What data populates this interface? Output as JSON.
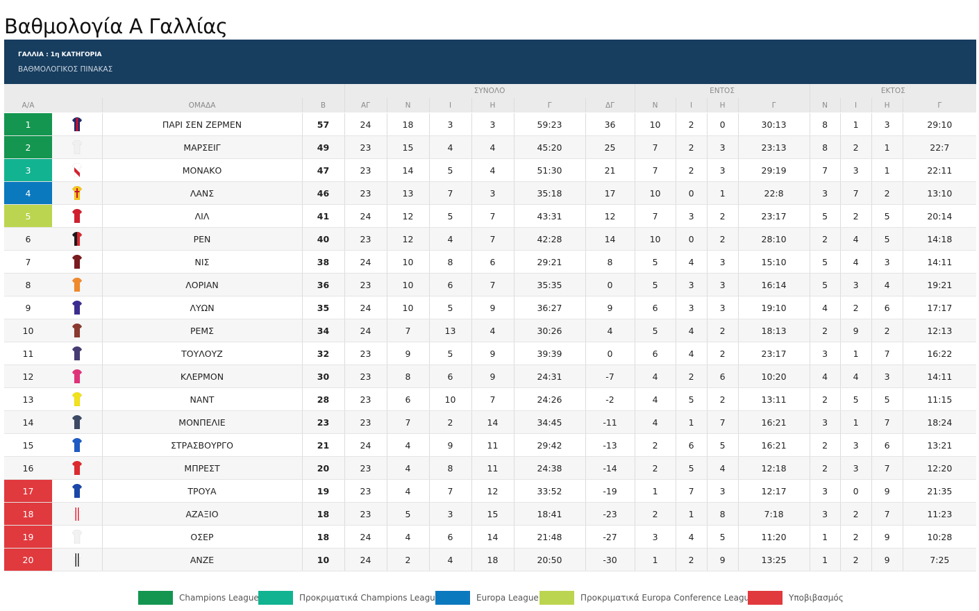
{
  "page_title": "Βαθμολογία Α Γαλλίας",
  "banner": {
    "country": "ΓΑΛΛΙΑ : 1η ΚΑΤΗΓΟΡΙΑ",
    "subtitle": "ΒΑΘΜΟΛΟΓΙΚΟΣ ΠΙΝΑΚΑΣ"
  },
  "header": {
    "groups": {
      "total": "ΣΥΝΟΛΟ",
      "home": "ΕΝΤΟΣ",
      "away": "ΕΚΤΟΣ"
    },
    "columns": {
      "pos": "Α/Α",
      "team": "ΟΜΑΔΑ",
      "pts": "Β",
      "gp": "ΑΓ",
      "w": "Ν",
      "d": "Ι",
      "l": "Η",
      "goals": "Γ",
      "gd": "ΔΓ"
    }
  },
  "zone_colors": {
    "cl": "#149650",
    "clq": "#12b391",
    "el": "#0b79be",
    "ecq": "#bcd550",
    "rel": "#e03a3e"
  },
  "rows": [
    {
      "pos": "1",
      "team": "ΠΑΡΙ ΣΕΝ ΖΕΡΜΕΝ",
      "pts": "57",
      "gp": "24",
      "w": "18",
      "d": "3",
      "l": "3",
      "goals": "59:23",
      "gd": "36",
      "hw": "10",
      "hd": "2",
      "hl": "0",
      "hg": "30:13",
      "aw": "8",
      "ad": "1",
      "al": "3",
      "ag": "29:10",
      "zone": "cl",
      "kit": {
        "icon": "psg-kit-icon",
        "primary": "#1d2a6b",
        "secondary": "#d4122b",
        "stripe": "center"
      }
    },
    {
      "pos": "2",
      "team": "ΜΑΡΣΕΙΓ",
      "pts": "49",
      "gp": "23",
      "w": "15",
      "d": "4",
      "l": "4",
      "goals": "45:20",
      "gd": "25",
      "hw": "7",
      "hd": "2",
      "hl": "3",
      "hg": "23:13",
      "aw": "8",
      "ad": "2",
      "al": "1",
      "ag": "22:7",
      "zone": "cl",
      "kit": {
        "icon": "marseille-kit-icon",
        "primary": "#f0f0f0",
        "secondary": "#b9c6d1",
        "stripe": "none"
      }
    },
    {
      "pos": "3",
      "team": "ΜΟΝΑΚΟ",
      "pts": "47",
      "gp": "23",
      "w": "14",
      "d": "5",
      "l": "4",
      "goals": "51:30",
      "gd": "21",
      "hw": "7",
      "hd": "2",
      "hl": "3",
      "hg": "29:19",
      "aw": "7",
      "ad": "3",
      "al": "1",
      "ag": "22:11",
      "zone": "clq",
      "kit": {
        "icon": "monaco-kit-icon",
        "primary": "#ffffff",
        "secondary": "#d4202f",
        "stripe": "diagonal"
      }
    },
    {
      "pos": "4",
      "team": "ΛΑΝΣ",
      "pts": "46",
      "gp": "23",
      "w": "13",
      "d": "7",
      "l": "3",
      "goals": "35:18",
      "gd": "17",
      "hw": "10",
      "hd": "0",
      "hl": "1",
      "hg": "22:8",
      "aw": "3",
      "ad": "7",
      "al": "2",
      "ag": "13:10",
      "zone": "el",
      "kit": {
        "icon": "lens-kit-icon",
        "primary": "#f4c51c",
        "secondary": "#c8102e",
        "stripe": "cross"
      }
    },
    {
      "pos": "5",
      "team": "ΛΙΛ",
      "pts": "41",
      "gp": "24",
      "w": "12",
      "d": "5",
      "l": "7",
      "goals": "43:31",
      "gd": "12",
      "hw": "7",
      "hd": "3",
      "hl": "2",
      "hg": "23:17",
      "aw": "5",
      "ad": "2",
      "al": "5",
      "ag": "20:14",
      "zone": "ecq",
      "kit": {
        "icon": "lille-kit-icon",
        "primary": "#d01f2f",
        "secondary": "#a3101e",
        "stripe": "none"
      }
    },
    {
      "pos": "6",
      "team": "ΡΕΝ",
      "pts": "40",
      "gp": "23",
      "w": "12",
      "d": "4",
      "l": "7",
      "goals": "42:28",
      "gd": "14",
      "hw": "10",
      "hd": "0",
      "hl": "2",
      "hg": "28:10",
      "aw": "2",
      "ad": "4",
      "al": "5",
      "ag": "14:18",
      "zone": "",
      "kit": {
        "icon": "rennes-kit-icon",
        "primary": "#1a1a1a",
        "secondary": "#d8272e",
        "stripe": "half"
      }
    },
    {
      "pos": "7",
      "team": "ΝΙΣ",
      "pts": "38",
      "gp": "24",
      "w": "10",
      "d": "8",
      "l": "6",
      "goals": "29:21",
      "gd": "8",
      "hw": "5",
      "hd": "4",
      "hl": "3",
      "hg": "15:10",
      "aw": "5",
      "ad": "4",
      "al": "3",
      "ag": "14:11",
      "zone": "",
      "kit": {
        "icon": "nice-kit-icon",
        "primary": "#7a1b1f",
        "secondary": "#1a1a1a",
        "stripe": "none"
      }
    },
    {
      "pos": "8",
      "team": "ΛΟΡΙΑΝ",
      "pts": "36",
      "gp": "23",
      "w": "10",
      "d": "6",
      "l": "7",
      "goals": "35:35",
      "gd": "0",
      "hw": "5",
      "hd": "3",
      "hl": "3",
      "hg": "16:14",
      "aw": "5",
      "ad": "3",
      "al": "4",
      "ag": "19:21",
      "zone": "",
      "kit": {
        "icon": "lorient-kit-icon",
        "primary": "#f08a2c",
        "secondary": "#d46e18",
        "stripe": "none"
      }
    },
    {
      "pos": "9",
      "team": "ΛΥΩΝ",
      "pts": "35",
      "gp": "24",
      "w": "10",
      "d": "5",
      "l": "9",
      "goals": "36:27",
      "gd": "9",
      "hw": "6",
      "hd": "3",
      "hl": "3",
      "hg": "19:10",
      "aw": "4",
      "ad": "2",
      "al": "6",
      "ag": "17:17",
      "zone": "",
      "kit": {
        "icon": "lyon-kit-icon",
        "primary": "#3b2d8f",
        "secondary": "#c8102e",
        "stripe": "none"
      }
    },
    {
      "pos": "10",
      "team": "ΡΕΜΣ",
      "pts": "34",
      "gp": "24",
      "w": "7",
      "d": "13",
      "l": "4",
      "goals": "30:26",
      "gd": "4",
      "hw": "5",
      "hd": "4",
      "hl": "2",
      "hg": "18:13",
      "aw": "2",
      "ad": "9",
      "al": "2",
      "ag": "12:13",
      "zone": "",
      "kit": {
        "icon": "reims-kit-icon",
        "primary": "#8a3a2e",
        "secondary": "#6d2a20",
        "stripe": "none"
      }
    },
    {
      "pos": "11",
      "team": "ΤΟΥΛΟΥΖ",
      "pts": "32",
      "gp": "23",
      "w": "9",
      "d": "5",
      "l": "9",
      "goals": "39:39",
      "gd": "0",
      "hw": "6",
      "hd": "4",
      "hl": "2",
      "hg": "23:17",
      "aw": "3",
      "ad": "1",
      "al": "7",
      "ag": "16:22",
      "zone": "",
      "kit": {
        "icon": "toulouse-kit-icon",
        "primary": "#463c72",
        "secondary": "#2e2654",
        "stripe": "none"
      }
    },
    {
      "pos": "12",
      "team": "ΚΛΕΡΜΟΝ",
      "pts": "30",
      "gp": "23",
      "w": "8",
      "d": "6",
      "l": "9",
      "goals": "24:31",
      "gd": "-7",
      "hw": "4",
      "hd": "2",
      "hl": "6",
      "hg": "10:20",
      "aw": "4",
      "ad": "4",
      "al": "3",
      "ag": "14:11",
      "zone": "",
      "kit": {
        "icon": "clermont-kit-icon",
        "primary": "#e0347a",
        "secondary": "#5a2a7a",
        "stripe": "none"
      }
    },
    {
      "pos": "13",
      "team": "ΝΑΝΤ",
      "pts": "28",
      "gp": "23",
      "w": "6",
      "d": "10",
      "l": "7",
      "goals": "24:26",
      "gd": "-2",
      "hw": "4",
      "hd": "5",
      "hl": "2",
      "hg": "13:11",
      "aw": "2",
      "ad": "5",
      "al": "5",
      "ag": "11:15",
      "zone": "",
      "kit": {
        "icon": "nantes-kit-icon",
        "primary": "#f2e21c",
        "secondary": "#b8a800",
        "stripe": "none"
      }
    },
    {
      "pos": "14",
      "team": "ΜΟΝΠΕΛΙΕ",
      "pts": "23",
      "gp": "23",
      "w": "7",
      "d": "2",
      "l": "14",
      "goals": "34:45",
      "gd": "-11",
      "hw": "4",
      "hd": "1",
      "hl": "7",
      "hg": "16:21",
      "aw": "3",
      "ad": "1",
      "al": "7",
      "ag": "18:24",
      "zone": "",
      "kit": {
        "icon": "montpellier-kit-icon",
        "primary": "#3c4a63",
        "secondary": "#e86b23",
        "stripe": "none"
      }
    },
    {
      "pos": "15",
      "team": "ΣΤΡΑΣΒΟΥΡΓΟ",
      "pts": "21",
      "gp": "24",
      "w": "4",
      "d": "9",
      "l": "11",
      "goals": "29:42",
      "gd": "-13",
      "hw": "2",
      "hd": "6",
      "hl": "5",
      "hg": "16:21",
      "aw": "2",
      "ad": "3",
      "al": "6",
      "ag": "13:21",
      "zone": "",
      "kit": {
        "icon": "strasbourg-kit-icon",
        "primary": "#1f5bc4",
        "secondary": "#123e8c",
        "stripe": "none"
      }
    },
    {
      "pos": "16",
      "team": "ΜΠΡΕΣΤ",
      "pts": "20",
      "gp": "23",
      "w": "4",
      "d": "8",
      "l": "11",
      "goals": "24:38",
      "gd": "-14",
      "hw": "2",
      "hd": "5",
      "hl": "4",
      "hg": "12:18",
      "aw": "2",
      "ad": "3",
      "al": "7",
      "ag": "12:20",
      "zone": "",
      "kit": {
        "icon": "brest-kit-icon",
        "primary": "#dc2a2f",
        "secondary": "#b01a20",
        "stripe": "none"
      }
    },
    {
      "pos": "17",
      "team": "ΤΡΟΥΑ",
      "pts": "19",
      "gp": "23",
      "w": "4",
      "d": "7",
      "l": "12",
      "goals": "33:52",
      "gd": "-19",
      "hw": "1",
      "hd": "7",
      "hl": "3",
      "hg": "12:17",
      "aw": "3",
      "ad": "0",
      "al": "9",
      "ag": "21:35",
      "zone": "rel",
      "kit": {
        "icon": "troyes-kit-icon",
        "primary": "#1a47a8",
        "secondary": "#0f2f75",
        "stripe": "none"
      }
    },
    {
      "pos": "18",
      "team": "ΑΖΑΞΙΟ",
      "pts": "18",
      "gp": "23",
      "w": "5",
      "d": "3",
      "l": "15",
      "goals": "18:41",
      "gd": "-23",
      "hw": "2",
      "hd": "1",
      "hl": "8",
      "hg": "7:18",
      "aw": "3",
      "ad": "2",
      "al": "7",
      "ag": "11:23",
      "zone": "rel",
      "kit": {
        "icon": "ajaccio-kit-icon",
        "primary": "#ffffff",
        "secondary": "#d4202f",
        "stripe": "vertical"
      }
    },
    {
      "pos": "19",
      "team": "ΟΣΕΡ",
      "pts": "18",
      "gp": "24",
      "w": "4",
      "d": "6",
      "l": "14",
      "goals": "21:48",
      "gd": "-27",
      "hw": "3",
      "hd": "4",
      "hl": "5",
      "hg": "11:20",
      "aw": "1",
      "ad": "2",
      "al": "9",
      "ag": "10:28",
      "zone": "rel",
      "kit": {
        "icon": "auxerre-kit-icon",
        "primary": "#f2f2f2",
        "secondary": "#9bb4d6",
        "stripe": "none"
      }
    },
    {
      "pos": "20",
      "team": "ΑΝΖΕ",
      "pts": "10",
      "gp": "24",
      "w": "2",
      "d": "4",
      "l": "18",
      "goals": "20:50",
      "gd": "-30",
      "hw": "1",
      "hd": "2",
      "hl": "9",
      "hg": "13:25",
      "aw": "1",
      "ad": "2",
      "al": "9",
      "ag": "7:25",
      "zone": "rel",
      "kit": {
        "icon": "angers-kit-icon",
        "primary": "#ffffff",
        "secondary": "#222222",
        "stripe": "vertical"
      }
    }
  ],
  "legend": [
    {
      "label": "Champions League",
      "zone": "cl"
    },
    {
      "label": "Προκριματικά Champions League",
      "zone": "clq"
    },
    {
      "label": "Europa League",
      "zone": "el"
    },
    {
      "label": "Προκριματικά Europa Conference League",
      "zone": "ecq"
    },
    {
      "label": "Υποβιβασμός",
      "zone": "rel"
    }
  ]
}
